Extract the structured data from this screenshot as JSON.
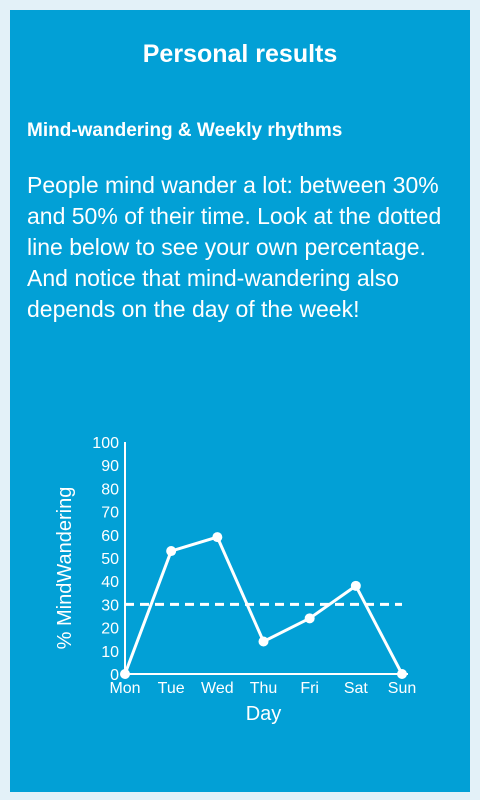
{
  "header": {
    "title": "Personal results"
  },
  "section": {
    "subtitle": "Mind-wandering & Weekly rhythms",
    "body": "People mind wander a lot: between 30% and 50% of their time. Look at the dotted line below to see your own percentage. And notice that mind-wandering also depends on the day of the week!"
  },
  "colors": {
    "background": "#e3f1f8",
    "card": "#02a0d6",
    "foreground": "#ffffff"
  },
  "chart_data": {
    "type": "line",
    "categories": [
      "Mon",
      "Tue",
      "Wed",
      "Thu",
      "Fri",
      "Sat",
      "Sun"
    ],
    "values": [
      0,
      53,
      59,
      14,
      24,
      38,
      0
    ],
    "reference_line": {
      "value": 30,
      "style": "dotted"
    },
    "xlabel": "Day",
    "ylabel": "% MindWandering",
    "ylim": [
      0,
      100
    ],
    "yticks": [
      0,
      10,
      20,
      30,
      40,
      50,
      60,
      70,
      80,
      90,
      100
    ],
    "grid": false
  }
}
